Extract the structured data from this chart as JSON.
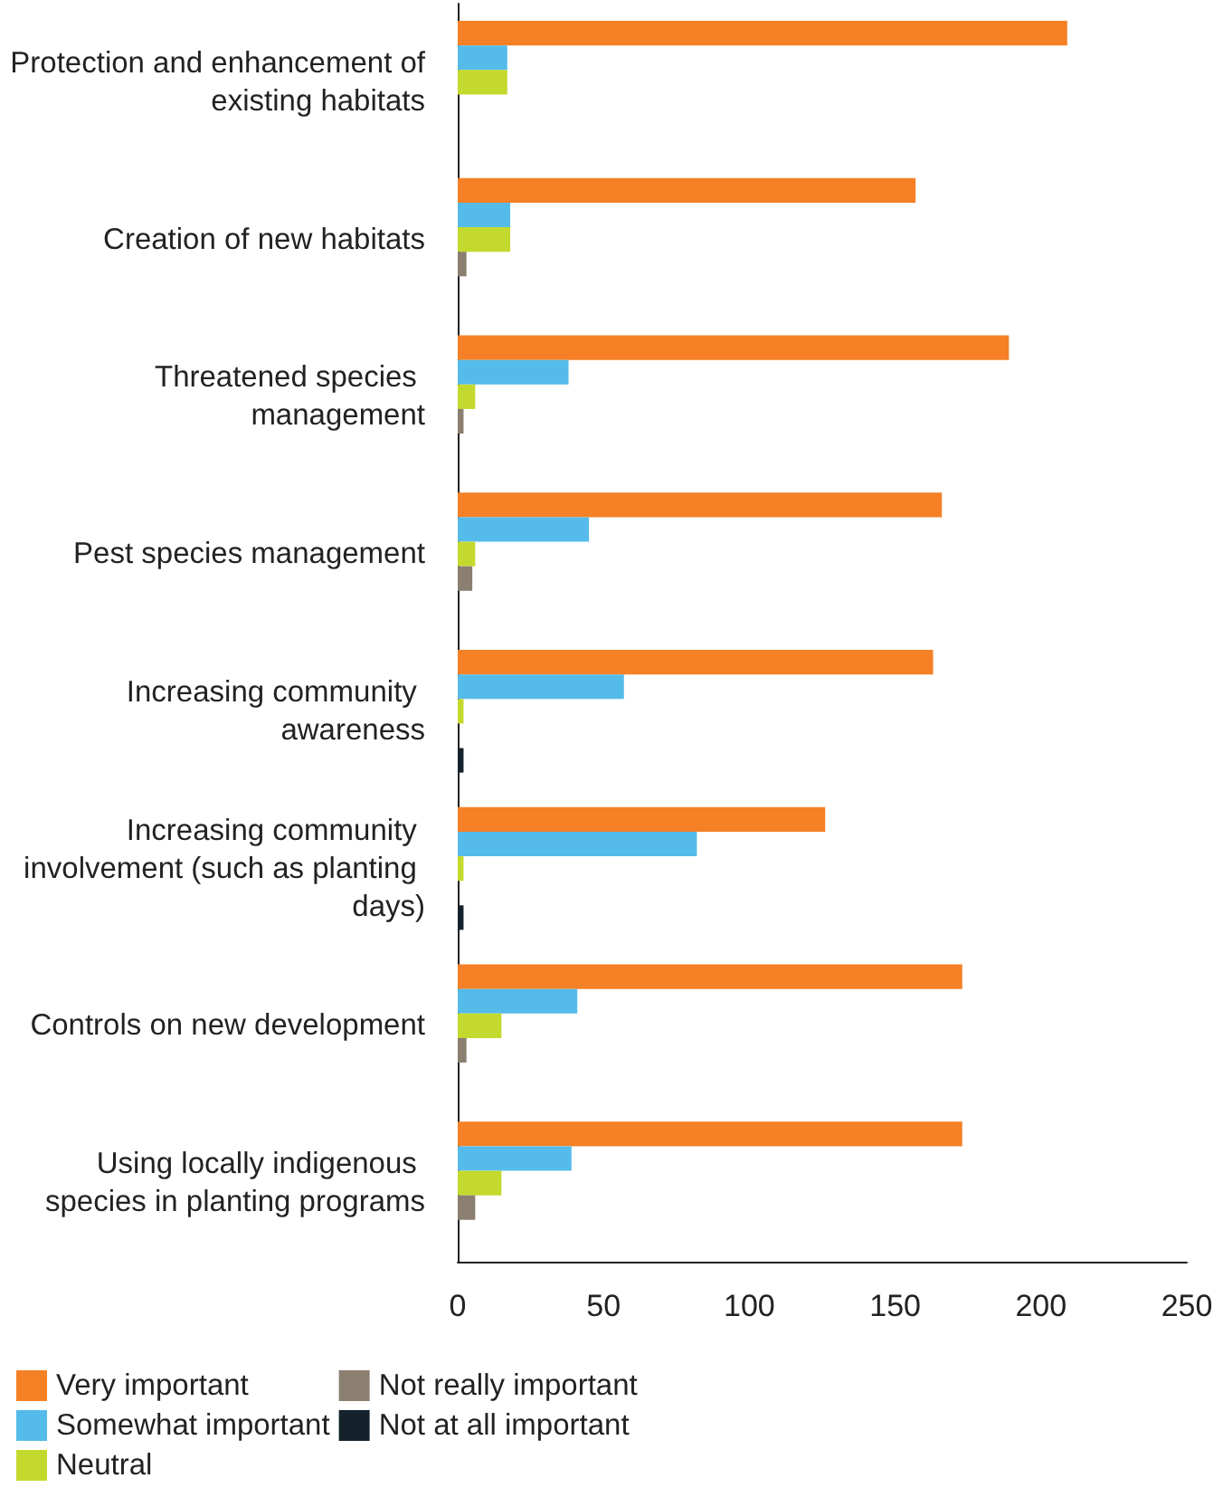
{
  "chart_data": {
    "type": "bar",
    "orientation": "horizontal",
    "categories": [
      "Protection and enhancement of existing habitats",
      "Creation of new habitats",
      "Threatened species management",
      "Pest species management",
      "Increasing community awareness",
      "Increasing community involvement (such as planting days)",
      "Controls on new development",
      "Using locally indigenous species in planting programs"
    ],
    "series": [
      {
        "name": "Very important",
        "color": "#f58025",
        "values": [
          209,
          157,
          189,
          166,
          163,
          126,
          173,
          173
        ]
      },
      {
        "name": "Somewhat important",
        "color": "#55bbea",
        "values": [
          17,
          18,
          38,
          45,
          57,
          82,
          41,
          39
        ]
      },
      {
        "name": "Neutral",
        "color": "#c4d92e",
        "values": [
          17,
          18,
          6,
          6,
          2,
          2,
          15,
          15
        ]
      },
      {
        "name": "Not really important",
        "color": "#8a7f70",
        "values": [
          null,
          3,
          2,
          5,
          null,
          null,
          3,
          6
        ]
      },
      {
        "name": "Not at all important",
        "color": "#15222b",
        "values": [
          null,
          null,
          null,
          null,
          2,
          2,
          null,
          null
        ]
      }
    ],
    "xlim": [
      0,
      250
    ],
    "xticks": [
      0,
      50,
      100,
      150,
      200,
      250
    ],
    "grid": false,
    "legend": "bottom"
  }
}
